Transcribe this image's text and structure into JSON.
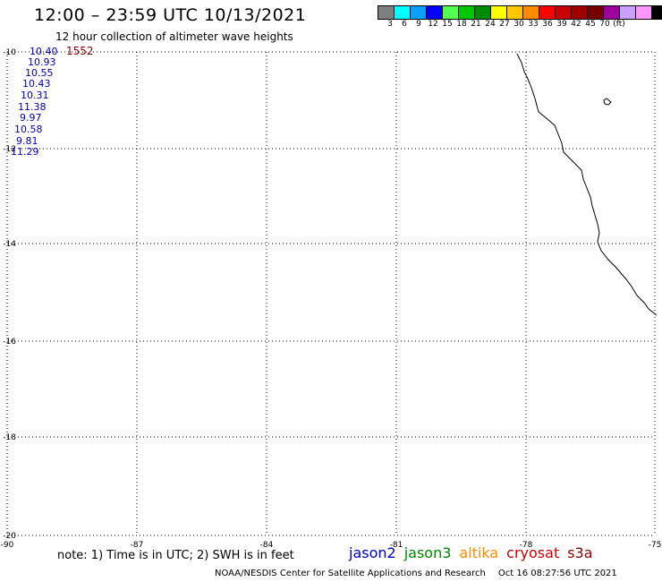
{
  "header": {
    "title": "12:00 – 23:59 UTC 10/13/2021",
    "subtitle": "12 hour collection of altimeter wave heights"
  },
  "colorbar": {
    "colors": [
      "#7f7f7f",
      "#00ffff",
      "#0aa0ff",
      "#0000ff",
      "#50ff50",
      "#00c800",
      "#008c00",
      "#ffff00",
      "#ffc800",
      "#ff8c00",
      "#ff0000",
      "#c80000",
      "#a00000",
      "#780000",
      "#a000a0",
      "#c8a0ff",
      "#ff96ff",
      "#000000"
    ],
    "labels": [
      "3",
      "6",
      "9",
      "12",
      "15",
      "18",
      "21",
      "24",
      "27",
      "30",
      "33",
      "36",
      "39",
      "42",
      "45",
      "70",
      "(ft)"
    ]
  },
  "map": {
    "lat_labels": [
      "-10",
      "-12",
      "-14",
      "-16",
      "-18",
      "-20"
    ],
    "lon_labels": [
      "-90",
      "-87",
      "-84",
      "-81",
      "-78",
      "-75"
    ],
    "observations": [
      "10.40",
      "10.93",
      "10.55",
      "10.43",
      "10.31",
      "11.38",
      "9.97",
      "10.58",
      "9.81",
      "11.29"
    ],
    "count_label": "1552"
  },
  "footer": {
    "note": "note: 1) Time is in UTC; 2) SWH is in feet",
    "satellites": [
      {
        "name": "jason2",
        "color": "#0000cc"
      },
      {
        "name": "jason3",
        "color": "#008800"
      },
      {
        "name": "altika",
        "color": "#ff8c00"
      },
      {
        "name": "cryosat",
        "color": "#cc0000"
      },
      {
        "name": "s3a",
        "color": "#8b0000"
      }
    ],
    "credit": "NOAA/NESDIS Center for Satellite Applications and Research",
    "timestamp": "Oct 16 08:27:56 UTC 2021"
  }
}
